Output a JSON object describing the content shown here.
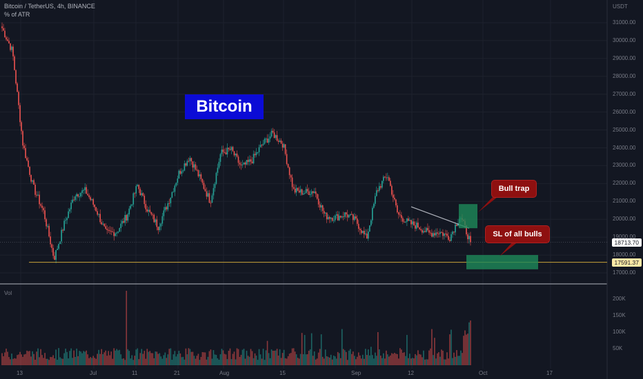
{
  "header": {
    "symbol_line": "Bitcoin / TetherUS, 4h, BINANCE",
    "indicator": "% of ATR"
  },
  "price_axis": {
    "unit": "USDT",
    "ticks": [
      "31000.00",
      "30000.00",
      "29000.00",
      "28000.00",
      "27000.00",
      "26000.00",
      "25000.00",
      "24000.00",
      "23000.00",
      "22000.00",
      "21000.00",
      "20000.00",
      "19000.00",
      "18000.00",
      "17000.00"
    ],
    "current_price": "18713.70",
    "level_price": "17591.37"
  },
  "volume_axis": {
    "label": "Vol",
    "ticks": [
      "200K",
      "150K",
      "100K",
      "50K"
    ]
  },
  "time_axis": {
    "ticks": [
      "13",
      "Jul",
      "11",
      "21",
      "Aug",
      "15",
      "Sep",
      "12",
      "Oct",
      "17"
    ]
  },
  "annotations": {
    "title": "Bitcoin",
    "bull_trap": "Bull trap",
    "sl_note": "SL of all bulls"
  },
  "chart_data": {
    "type": "candlestick",
    "title": "Bitcoin / TetherUS, 4h, BINANCE",
    "ylim": [
      16700,
      31500
    ],
    "xlim_labels": [
      "13",
      "Jul",
      "11",
      "21",
      "Aug",
      "15",
      "Sep",
      "12",
      "Oct",
      "17"
    ],
    "colors": {
      "up": "#26a69a",
      "down": "#ef5350",
      "support_line": "#c8a43a",
      "zone": "#1e8a5a"
    },
    "price_path": [
      [
        "13",
        30700
      ],
      [
        "",
        29400
      ],
      [
        "",
        24200
      ],
      [
        "",
        21800
      ],
      [
        "",
        20400
      ],
      [
        "",
        17800
      ],
      [
        "",
        19800
      ],
      [
        "",
        21400
      ],
      [
        "",
        21600
      ],
      [
        "",
        20600
      ],
      [
        "Jul",
        19200
      ],
      [
        "",
        19300
      ],
      [
        "",
        20200
      ],
      [
        "",
        21900
      ],
      [
        "",
        20500
      ],
      [
        "11",
        19600
      ],
      [
        "",
        21000
      ],
      [
        "",
        22600
      ],
      [
        "21",
        23500
      ],
      [
        "",
        22300
      ],
      [
        "",
        21000
      ],
      [
        "",
        23700
      ],
      [
        "Aug",
        23900
      ],
      [
        "",
        22900
      ],
      [
        "",
        23300
      ],
      [
        "",
        24200
      ],
      [
        "15",
        24800
      ],
      [
        "",
        24200
      ],
      [
        "",
        21600
      ],
      [
        "",
        21500
      ],
      [
        "",
        21600
      ],
      [
        "",
        20200
      ],
      [
        "",
        20100
      ],
      [
        "",
        20300
      ],
      [
        "",
        19900
      ],
      [
        "Sep",
        18900
      ],
      [
        "",
        21600
      ],
      [
        "12",
        22500
      ],
      [
        "",
        20300
      ],
      [
        "",
        19800
      ],
      [
        "",
        19600
      ],
      [
        "",
        19200
      ],
      [
        "",
        19300
      ],
      [
        "",
        19000
      ],
      [
        "",
        20200
      ],
      [
        "Oct",
        18713.7
      ]
    ],
    "current_price": 18713.7,
    "support_level": 17591.37,
    "trendline": {
      "from": 20700,
      "to": 19500
    },
    "zones": [
      {
        "label": "Bull trap",
        "low": 19500,
        "high": 20850
      },
      {
        "label": "SL of all bulls",
        "low": 17200,
        "high": 18000
      }
    ],
    "volume": {
      "ylim": [
        0,
        230000
      ],
      "spike": 225000,
      "typical": 40000
    }
  }
}
